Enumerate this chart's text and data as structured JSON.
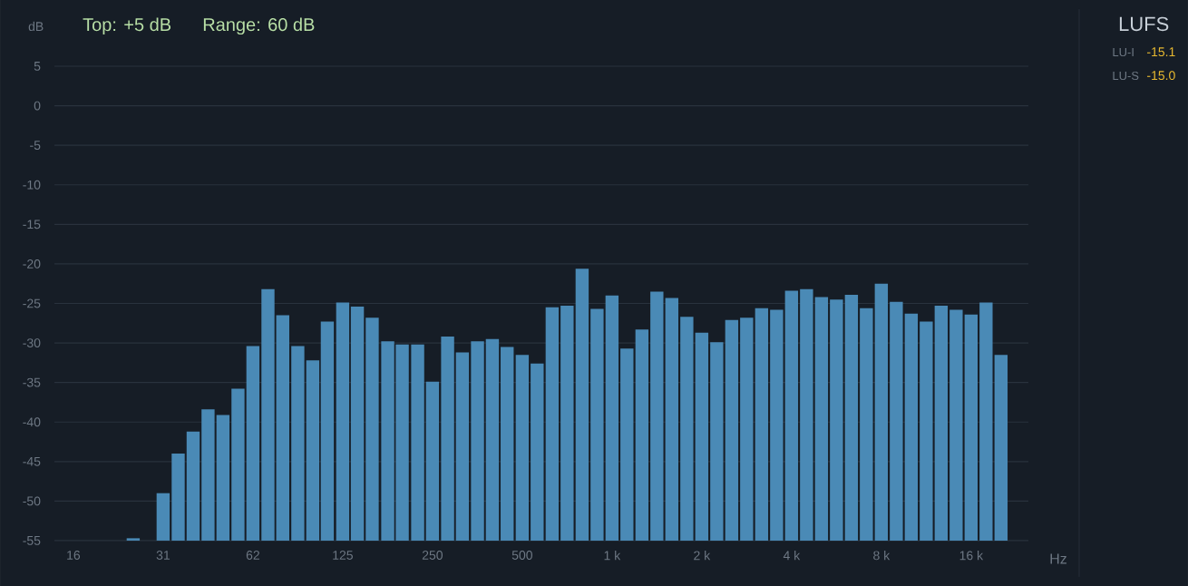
{
  "chart_data": [
    {
      "type": "bar",
      "title": "Top: +5 dB",
      "subtitle": "Range: 60 dB",
      "xlabel": "Hz",
      "ylabel": "dB",
      "log": "x",
      "grid": "y",
      "color": "#4a8ab6",
      "x": [
        24.8,
        31.25,
        35.1,
        39.4,
        44.2,
        49.6,
        55.7,
        62.5,
        70.2,
        78.7,
        88.4,
        99.2,
        111,
        125,
        140,
        157,
        177,
        198,
        223,
        250,
        281,
        315,
        354,
        397,
        445,
        500,
        561,
        630,
        707,
        794,
        891,
        1000,
        1122,
        1260,
        1414,
        1587,
        1782,
        2000,
        2245,
        2520,
        2828,
        3175,
        3564,
        4000,
        4490,
        5040,
        5657,
        6350,
        7127,
        8000,
        8980,
        10079,
        11314,
        12699,
        14254,
        16000,
        17959,
        20159
      ],
      "base": [
        -55,
        -55,
        -55,
        -55,
        -55,
        -55,
        -55,
        -55,
        -55,
        -55,
        -55,
        -55,
        -55,
        -55,
        -55,
        -55,
        -55,
        -55,
        -55,
        -55,
        -55,
        -55,
        -55,
        -55,
        -55,
        -55,
        -55,
        -55,
        -55,
        -55,
        -55,
        -55,
        -55,
        -55,
        -55,
        -55,
        -55,
        -55,
        -55,
        -55,
        -55,
        -55,
        -55,
        -55,
        -55,
        -55,
        -55,
        -55,
        -55,
        -55,
        -55,
        -55,
        -55,
        -55,
        -55,
        -55,
        -55,
        -55
      ],
      "values": [
        0.3,
        6.0,
        11.0,
        13.8,
        16.6,
        15.9,
        19.2,
        24.6,
        31.8,
        28.5,
        24.6,
        22.8,
        27.7,
        30.1,
        29.6,
        28.2,
        25.2,
        24.8,
        24.8,
        20.1,
        25.8,
        23.8,
        25.2,
        25.5,
        24.5,
        23.5,
        22.4,
        29.5,
        29.7,
        34.4,
        29.3,
        31.0,
        24.3,
        26.7,
        31.5,
        30.7,
        28.3,
        26.3,
        25.1,
        27.9,
        28.2,
        29.4,
        29.2,
        31.6,
        31.8,
        30.8,
        30.5,
        31.1,
        29.4,
        32.5,
        30.2,
        28.7,
        27.7,
        29.7,
        29.2,
        28.6,
        30.1,
        23.5
      ],
      "xlim": [
        13.5,
        24900
      ],
      "xticks": [
        {
          "value": 15.625,
          "label": "16"
        },
        {
          "value": 31.25,
          "label": "31"
        },
        {
          "value": 62.5,
          "label": "62"
        },
        125,
        250,
        500,
        {
          "value": 1000,
          "label": "1 k"
        },
        {
          "value": 2000,
          "label": "2 k"
        },
        {
          "value": 4000,
          "label": "4 k"
        },
        {
          "value": 8000,
          "label": "8 k"
        },
        {
          "value": 16000,
          "label": "16 k"
        }
      ],
      "ylim": [
        -55,
        5
      ],
      "yticks": [
        5,
        0,
        -5,
        -10,
        -15,
        -20,
        -25,
        -30,
        -35,
        -40,
        -45,
        -50,
        -55
      ]
    },
    {
      "type": "other",
      "title": "LUFS",
      "annotations": [
        "LU-I",
        "-15.1",
        "LU-S",
        "-15.0"
      ]
    }
  ]
}
